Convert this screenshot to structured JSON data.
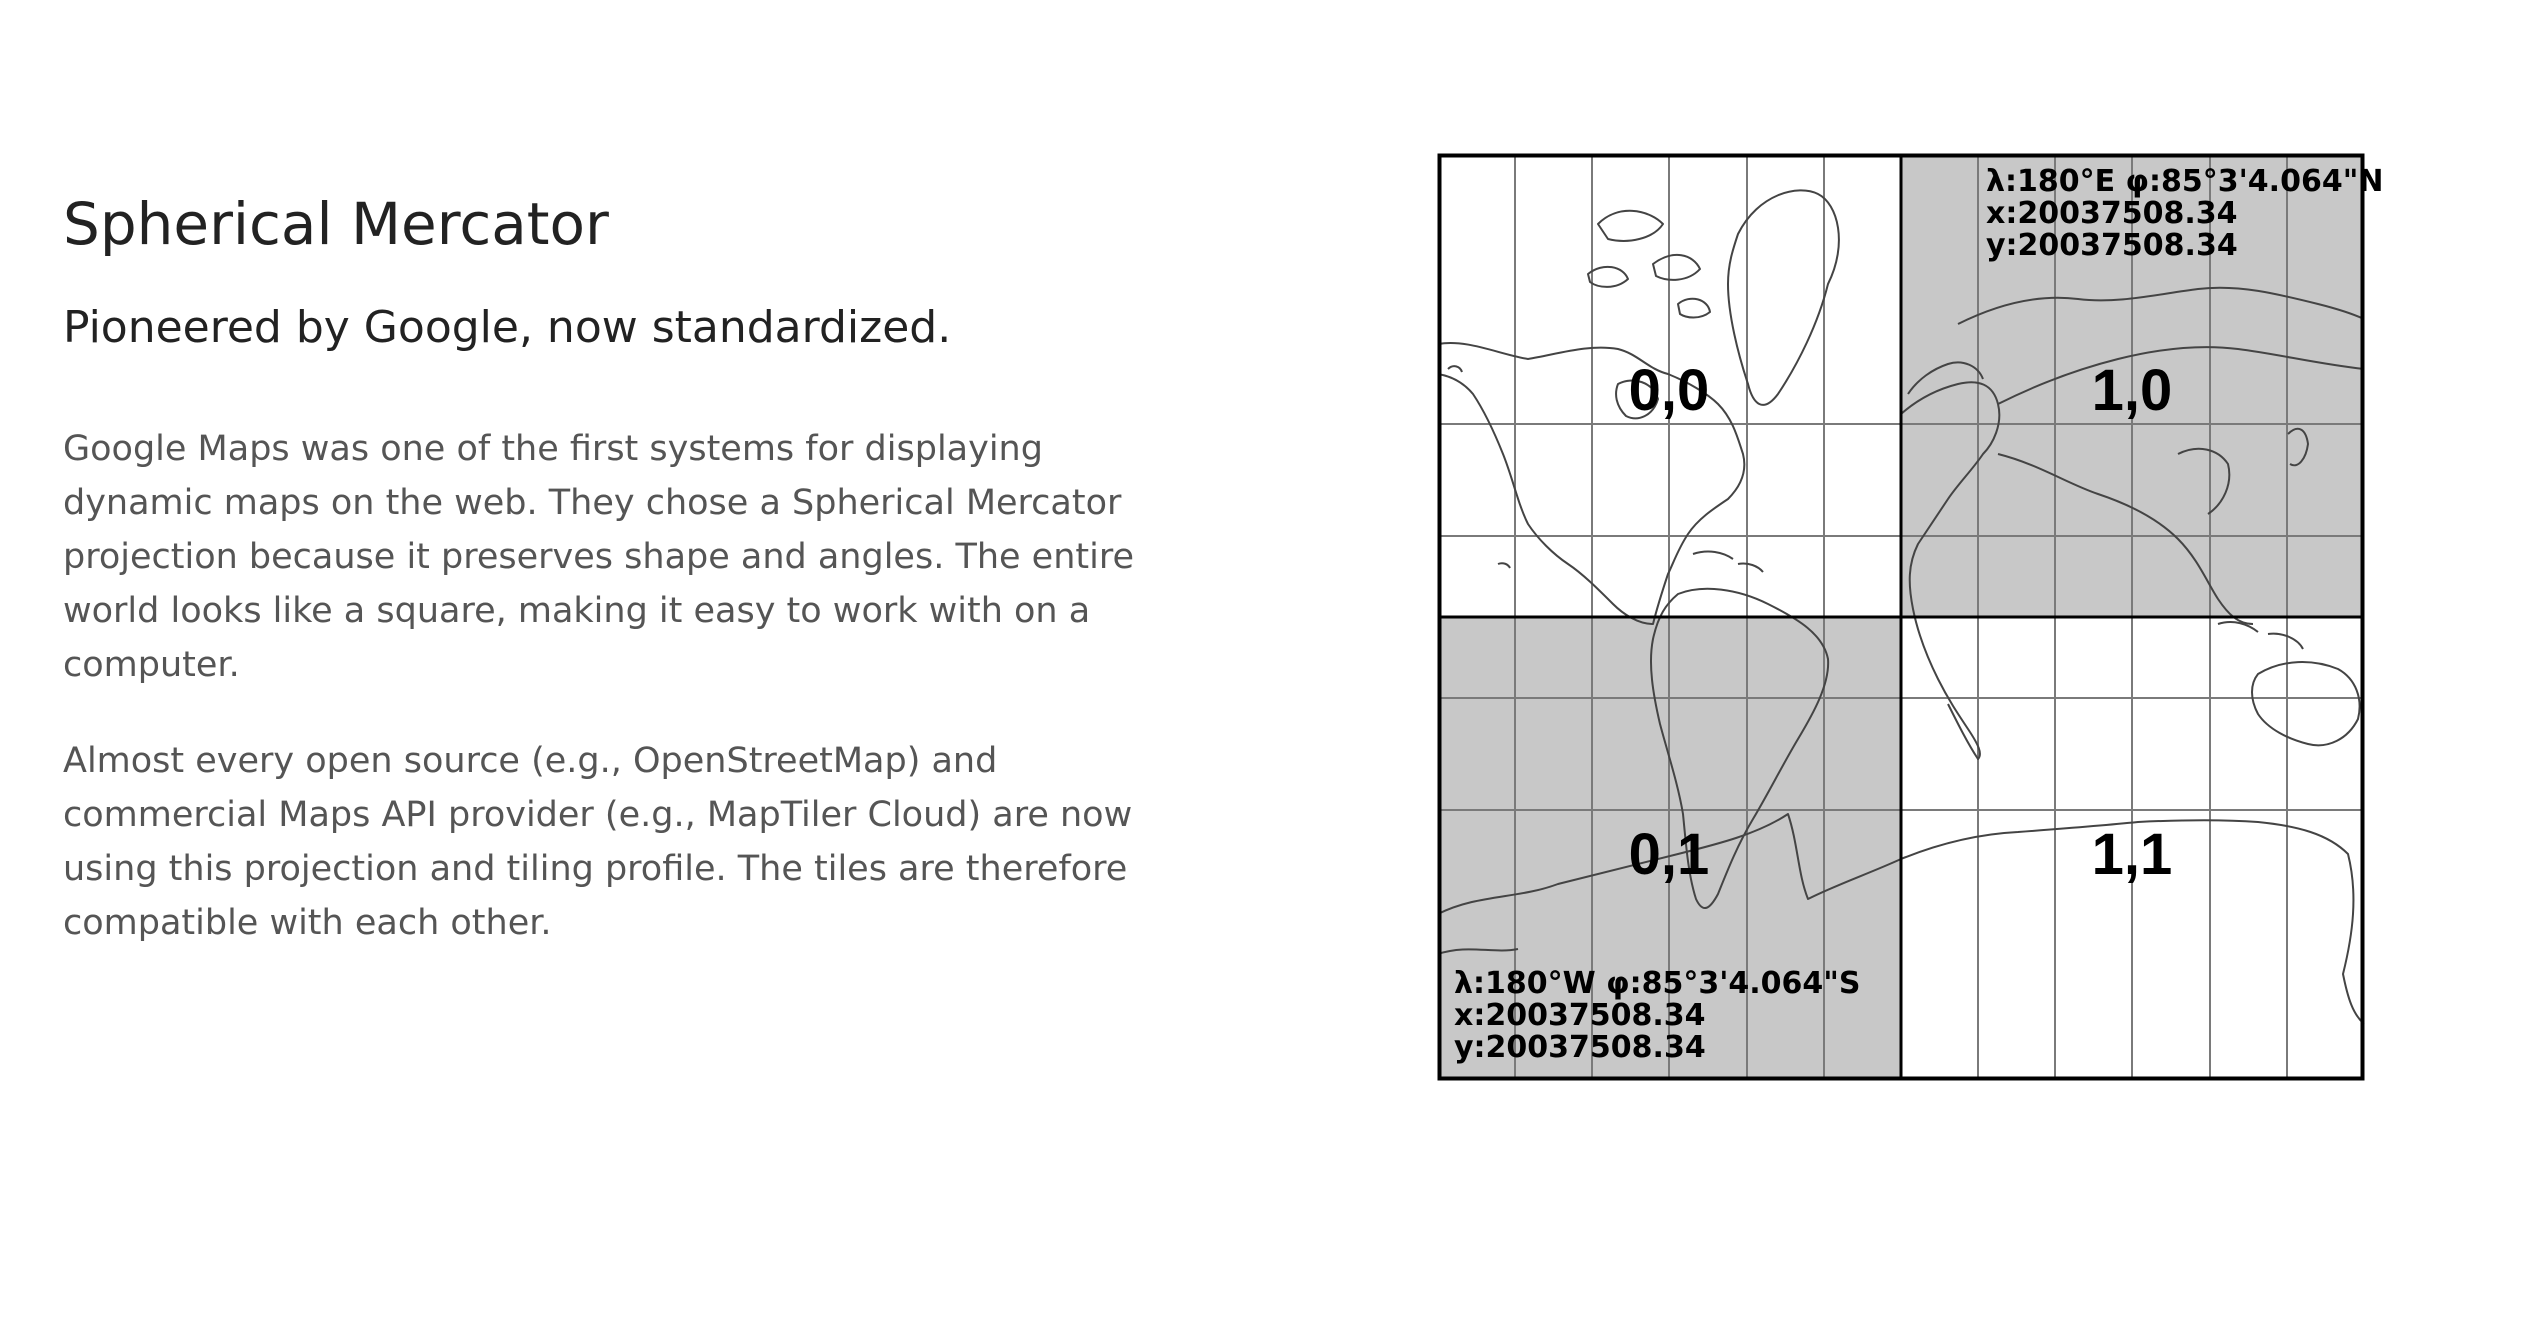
{
  "header": {
    "title": "Spherical Mercator",
    "subtitle": "Pioneered by Google, now standardized."
  },
  "body": {
    "paragraphs": [
      "Google Maps was one of the first systems for displaying dynamic maps on the web. They chose a Spherical Mercator projection because it preserves shape and angles. The entire world looks like a square, making it easy to work with on a computer.",
      "Almost every open source (e.g., OpenStreetMap) and commercial Maps API provider (e.g., MapTiler Cloud) are now using this projection and tiling profile. The tiles are therefore compatible with each other."
    ]
  },
  "map": {
    "tiles": [
      {
        "label": "0,0",
        "shaded": false
      },
      {
        "label": "1,0",
        "shaded": true
      },
      {
        "label": "0,1",
        "shaded": true
      },
      {
        "label": "1,1",
        "shaded": false
      }
    ],
    "ne_corner": {
      "lonlat": "λ:180°E φ:85°3'4.064\"N",
      "x": "x:20037508.34",
      "y": "y:20037508.34"
    },
    "sw_corner": {
      "lonlat": "λ:180°W φ:85°3'4.064\"S",
      "x": "x:20037508.34",
      "y": "y:20037508.34"
    },
    "colors": {
      "shade": "#c8c8c8",
      "grid": "#7a7a7a",
      "coast": "#444444"
    }
  }
}
